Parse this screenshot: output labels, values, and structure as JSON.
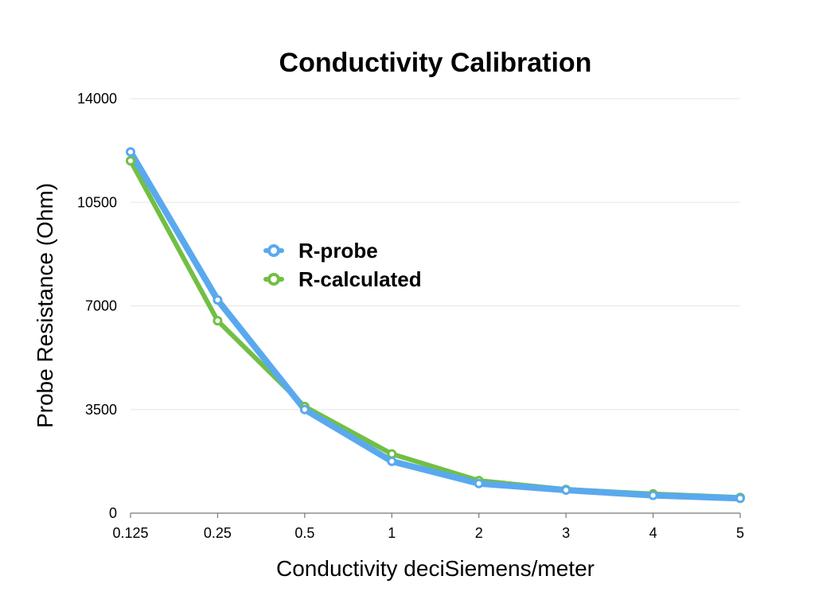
{
  "chart_data": {
    "type": "line",
    "title": "Conductivity Calibration",
    "xlabel": "Conductivity deciSiemens/meter",
    "ylabel": "Probe Resistance (Ohm)",
    "categories": [
      "0.125",
      "0.25",
      "0.5",
      "1",
      "2",
      "3",
      "4",
      "5"
    ],
    "ylim": [
      0,
      14000
    ],
    "yticks": [
      "0",
      "3500",
      "7000",
      "10500",
      "14000"
    ],
    "ytick_values": [
      0,
      3500,
      7000,
      10500,
      14000
    ],
    "grid": true,
    "legend_position": "center-left",
    "series": [
      {
        "name": "R-probe",
        "color": "#5aa9ee",
        "values": [
          12200,
          7200,
          3500,
          1750,
          1000,
          780,
          600,
          500
        ]
      },
      {
        "name": "R-calculated",
        "color": "#72bf44",
        "values": [
          11900,
          6500,
          3600,
          2000,
          1100,
          800,
          650,
          530
        ]
      }
    ]
  }
}
